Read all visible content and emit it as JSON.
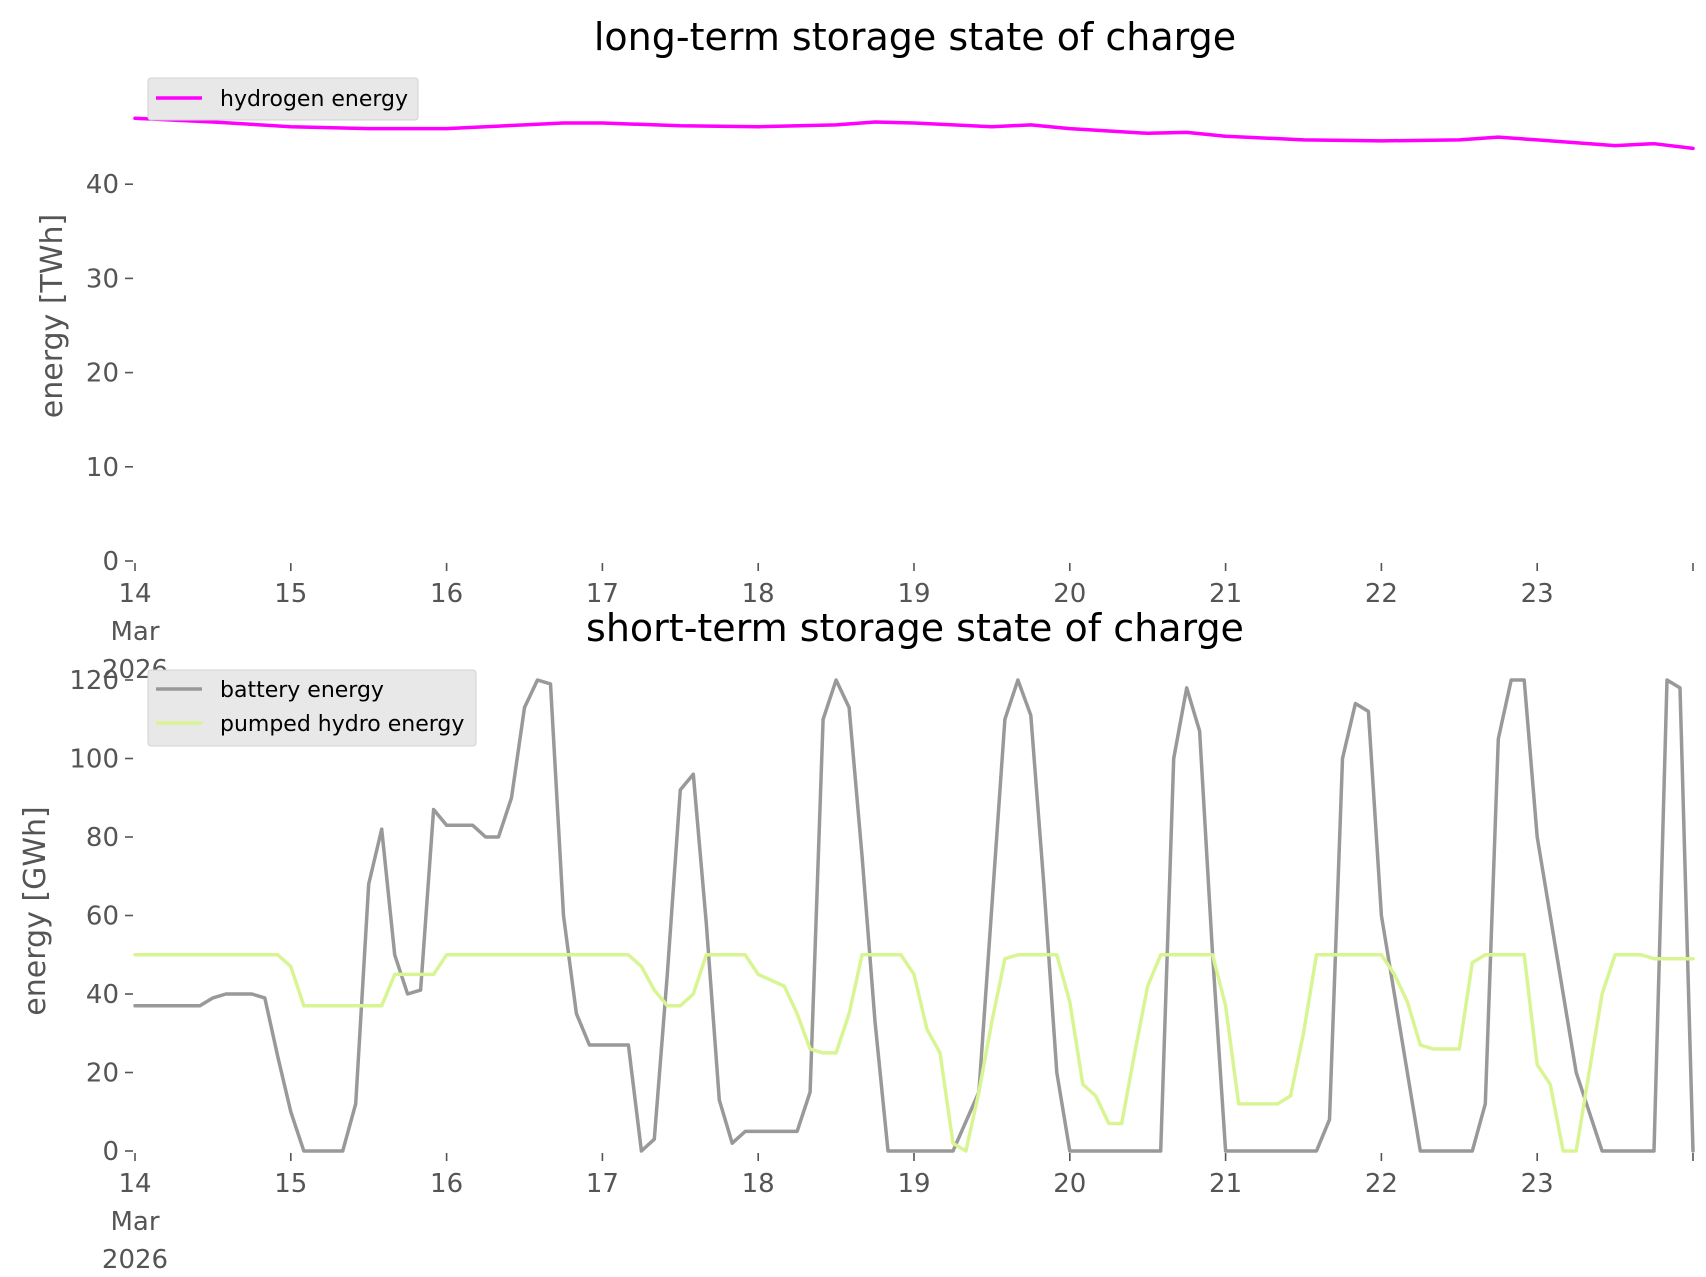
{
  "chart_data": [
    {
      "type": "line",
      "title": "long-term storage state of charge",
      "xlabel": "",
      "ylabel": "energy [TWh]",
      "x_range": [
        "2026-03-14T00:00",
        "2026-03-24T00:00"
      ],
      "ylim": [
        0,
        50
      ],
      "yticks": [
        0,
        10,
        20,
        30,
        40
      ],
      "xtick_labels": [
        "14\nMar\n2026",
        "15",
        "16",
        "17",
        "18",
        "19",
        "20",
        "21",
        "22",
        "23"
      ],
      "grid": false,
      "legend": "upper left",
      "x": [
        "2026-03-14T00:00",
        "2026-03-14T12:00",
        "2026-03-15T00:00",
        "2026-03-15T12:00",
        "2026-03-16T00:00",
        "2026-03-16T12:00",
        "2026-03-16T18:00",
        "2026-03-17T00:00",
        "2026-03-17T12:00",
        "2026-03-18T00:00",
        "2026-03-18T12:00",
        "2026-03-18T18:00",
        "2026-03-19T00:00",
        "2026-03-19T12:00",
        "2026-03-19T18:00",
        "2026-03-20T00:00",
        "2026-03-20T12:00",
        "2026-03-20T18:00",
        "2026-03-21T00:00",
        "2026-03-21T12:00",
        "2026-03-22T00:00",
        "2026-03-22T12:00",
        "2026-03-22T18:00",
        "2026-03-23T00:00",
        "2026-03-23T12:00",
        "2026-03-23T18:00",
        "2026-03-24T00:00"
      ],
      "series": [
        {
          "name": "hydrogen energy",
          "color": "#ff00ff",
          "values": [
            47.0,
            46.6,
            46.1,
            45.9,
            45.9,
            46.3,
            46.5,
            46.5,
            46.2,
            46.1,
            46.3,
            46.6,
            46.5,
            46.1,
            46.3,
            45.9,
            45.4,
            45.5,
            45.1,
            44.7,
            44.6,
            44.7,
            45.0,
            44.7,
            44.1,
            44.3,
            43.8
          ]
        }
      ]
    },
    {
      "type": "line",
      "title": "short-term storage state of charge",
      "xlabel": "",
      "ylabel": "energy [GWh]",
      "x_range": [
        "2026-03-14T00:00",
        "2026-03-24T00:00"
      ],
      "ylim": [
        0,
        120
      ],
      "yticks": [
        0,
        20,
        40,
        60,
        80,
        100,
        120
      ],
      "xtick_labels": [
        "14\nMar\n2026",
        "15",
        "16",
        "17",
        "18",
        "19",
        "20",
        "21",
        "22",
        "23"
      ],
      "grid": false,
      "legend": "upper left",
      "series": [
        {
          "name": "battery energy",
          "color": "#999999",
          "x": [
            "2026-03-14T00:00",
            "2026-03-14T10:00",
            "2026-03-14T12:00",
            "2026-03-14T14:00",
            "2026-03-14T18:00",
            "2026-03-14T20:00",
            "2026-03-14T22:00",
            "2026-03-15T00:00",
            "2026-03-15T02:00",
            "2026-03-15T06:00",
            "2026-03-15T08:00",
            "2026-03-15T10:00",
            "2026-03-15T12:00",
            "2026-03-15T14:00",
            "2026-03-15T16:00",
            "2026-03-15T18:00",
            "2026-03-15T20:00",
            "2026-03-15T22:00",
            "2026-03-16T00:00",
            "2026-03-16T02:00",
            "2026-03-16T04:00",
            "2026-03-16T06:00",
            "2026-03-16T08:00",
            "2026-03-16T10:00",
            "2026-03-16T12:00",
            "2026-03-16T14:00",
            "2026-03-16T16:00",
            "2026-03-16T18:00",
            "2026-03-16T20:00",
            "2026-03-16T22:00",
            "2026-03-17T00:00",
            "2026-03-17T02:00",
            "2026-03-17T04:00",
            "2026-03-17T06:00",
            "2026-03-17T08:00",
            "2026-03-17T10:00",
            "2026-03-17T12:00",
            "2026-03-17T14:00",
            "2026-03-17T16:00",
            "2026-03-17T18:00",
            "2026-03-17T20:00",
            "2026-03-17T22:00",
            "2026-03-18T00:00",
            "2026-03-18T02:00",
            "2026-03-18T04:00",
            "2026-03-18T06:00",
            "2026-03-18T08:00",
            "2026-03-18T10:00",
            "2026-03-18T12:00",
            "2026-03-18T14:00",
            "2026-03-18T16:00",
            "2026-03-18T18:00",
            "2026-03-18T20:00",
            "2026-03-18T22:00",
            "2026-03-19T00:00",
            "2026-03-19T06:00",
            "2026-03-19T10:00",
            "2026-03-19T14:00",
            "2026-03-19T16:00",
            "2026-03-19T18:00",
            "2026-03-19T20:00",
            "2026-03-19T22:00",
            "2026-03-20T00:00",
            "2026-03-20T06:00",
            "2026-03-20T10:00",
            "2026-03-20T14:00",
            "2026-03-20T16:00",
            "2026-03-20T18:00",
            "2026-03-20T20:00",
            "2026-03-20T22:00",
            "2026-03-21T00:00",
            "2026-03-21T06:00",
            "2026-03-21T10:00",
            "2026-03-21T14:00",
            "2026-03-21T16:00",
            "2026-03-21T18:00",
            "2026-03-21T20:00",
            "2026-03-21T22:00",
            "2026-03-22T00:00",
            "2026-03-22T06:00",
            "2026-03-22T10:00",
            "2026-03-22T14:00",
            "2026-03-22T16:00",
            "2026-03-22T18:00",
            "2026-03-22T20:00",
            "2026-03-22T22:00",
            "2026-03-23T00:00",
            "2026-03-23T06:00",
            "2026-03-23T10:00",
            "2026-03-23T14:00",
            "2026-03-23T16:00",
            "2026-03-23T18:00",
            "2026-03-23T20:00",
            "2026-03-23T22:00",
            "2026-03-24T00:00"
          ],
          "values": [
            37,
            37,
            39,
            40,
            40,
            39,
            24,
            10,
            0,
            0,
            0,
            12,
            68,
            82,
            50,
            40,
            41,
            87,
            83,
            83,
            83,
            80,
            80,
            90,
            113,
            120,
            119,
            60,
            35,
            27,
            27,
            27,
            27,
            0,
            3,
            45,
            92,
            96,
            58,
            13,
            2,
            5,
            5,
            5,
            5,
            5,
            15,
            110,
            120,
            113,
            75,
            33,
            0,
            0,
            0,
            0,
            15,
            110,
            120,
            111,
            68,
            20,
            0,
            0,
            0,
            0,
            100,
            118,
            107,
            50,
            0,
            0,
            0,
            0,
            8,
            100,
            114,
            112,
            60,
            0,
            0,
            0,
            12,
            105,
            120,
            120,
            80,
            20,
            0,
            0,
            0,
            0,
            120,
            118,
            0
          ]
        },
        {
          "name": "pumped hydro energy",
          "color": "#d9f593",
          "x": [
            "2026-03-14T00:00",
            "2026-03-14T22:00",
            "2026-03-15T00:00",
            "2026-03-15T02:00",
            "2026-03-15T12:00",
            "2026-03-15T14:00",
            "2026-03-15T16:00",
            "2026-03-15T22:00",
            "2026-03-16T00:00",
            "2026-03-17T00:00",
            "2026-03-17T04:00",
            "2026-03-17T06:00",
            "2026-03-17T08:00",
            "2026-03-17T10:00",
            "2026-03-17T12:00",
            "2026-03-17T14:00",
            "2026-03-17T16:00",
            "2026-03-17T18:00",
            "2026-03-17T20:00",
            "2026-03-17T22:00",
            "2026-03-18T00:00",
            "2026-03-18T04:00",
            "2026-03-18T06:00",
            "2026-03-18T08:00",
            "2026-03-18T10:00",
            "2026-03-18T12:00",
            "2026-03-18T14:00",
            "2026-03-18T16:00",
            "2026-03-18T18:00",
            "2026-03-18T20:00",
            "2026-03-18T22:00",
            "2026-03-19T00:00",
            "2026-03-19T02:00",
            "2026-03-19T04:00",
            "2026-03-19T06:00",
            "2026-03-19T08:00",
            "2026-03-19T10:00",
            "2026-03-19T12:00",
            "2026-03-19T14:00",
            "2026-03-19T16:00",
            "2026-03-19T18:00",
            "2026-03-19T20:00",
            "2026-03-19T22:00",
            "2026-03-20T00:00",
            "2026-03-20T02:00",
            "2026-03-20T04:00",
            "2026-03-20T06:00",
            "2026-03-20T08:00",
            "2026-03-20T10:00",
            "2026-03-20T12:00",
            "2026-03-20T14:00",
            "2026-03-20T16:00",
            "2026-03-20T18:00",
            "2026-03-20T20:00",
            "2026-03-20T22:00",
            "2026-03-21T00:00",
            "2026-03-21T02:00",
            "2026-03-21T04:00",
            "2026-03-21T08:00",
            "2026-03-21T10:00",
            "2026-03-21T12:00",
            "2026-03-21T14:00",
            "2026-03-21T16:00",
            "2026-03-21T18:00",
            "2026-03-22T00:00",
            "2026-03-22T02:00",
            "2026-03-22T04:00",
            "2026-03-22T06:00",
            "2026-03-22T08:00",
            "2026-03-22T10:00",
            "2026-03-22T12:00",
            "2026-03-22T14:00",
            "2026-03-22T16:00",
            "2026-03-22T18:00",
            "2026-03-22T20:00",
            "2026-03-22T22:00",
            "2026-03-23T00:00",
            "2026-03-23T02:00",
            "2026-03-23T04:00",
            "2026-03-23T06:00",
            "2026-03-23T08:00",
            "2026-03-23T10:00",
            "2026-03-23T12:00",
            "2026-03-23T14:00",
            "2026-03-23T16:00",
            "2026-03-23T18:00",
            "2026-03-23T20:00",
            "2026-03-23T22:00",
            "2026-03-24T00:00"
          ],
          "values": [
            50,
            50,
            47,
            37,
            37,
            37,
            45,
            45,
            50,
            50,
            50,
            47,
            41,
            37,
            37,
            40,
            50,
            50,
            50,
            50,
            45,
            42,
            35,
            26,
            25,
            25,
            35,
            50,
            50,
            50,
            50,
            45,
            31,
            25,
            2,
            0,
            15,
            33,
            49,
            50,
            50,
            50,
            50,
            38,
            17,
            14,
            7,
            7,
            25,
            42,
            50,
            50,
            50,
            50,
            50,
            37,
            12,
            12,
            12,
            14,
            30,
            50,
            50,
            50,
            50,
            45,
            38,
            27,
            26,
            26,
            26,
            48,
            50,
            50,
            50,
            50,
            22,
            17,
            0,
            0,
            20,
            40,
            50,
            50,
            50,
            49,
            49,
            49,
            49
          ]
        }
      ]
    }
  ]
}
